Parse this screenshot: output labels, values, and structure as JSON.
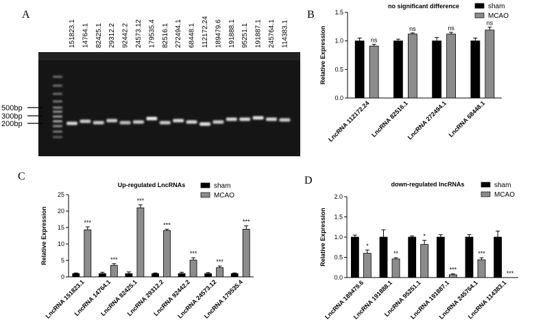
{
  "panels": {
    "a": "A",
    "b": "B",
    "c": "C",
    "d": "D"
  },
  "gel": {
    "lanes": [
      "151823.1",
      "14764.1",
      "82425.1",
      "29312.2",
      "92442.2",
      "24573.12",
      "179535.4",
      "82516.1",
      "272494.1",
      "68448.1",
      "112172.24",
      "189479.6",
      "191888.1",
      "95251.1",
      "191887.1",
      "245764.1",
      "114383.1"
    ],
    "markers": [
      "500bp",
      "300bp",
      "200bp"
    ]
  },
  "colors": {
    "sham": "#000000",
    "mcao": "#8c8c8c"
  },
  "chart_data": [
    {
      "panel": "B",
      "type": "bar",
      "title": "no significant difference",
      "ylabel": "Relative Expression",
      "ylim": [
        0,
        1.5
      ],
      "yticks": [
        "0.0",
        "0.5",
        "1.0",
        "1.5"
      ],
      "categories": [
        "LncRNA 112172.24",
        "LncRNA 82516.1",
        "LncRNA 272494.1",
        "LncRNA 68448.1"
      ],
      "series": [
        {
          "name": "sham",
          "values": [
            1.0,
            1.0,
            1.0,
            1.0
          ],
          "errors": [
            0.05,
            0.03,
            0.06,
            0.05
          ]
        },
        {
          "name": "MCAO",
          "values": [
            0.91,
            1.12,
            1.12,
            1.19
          ],
          "errors": [
            0.03,
            0.02,
            0.03,
            0.05
          ]
        }
      ],
      "significance": [
        "ns",
        "ns",
        "ns",
        "ns"
      ],
      "legend": "top-right"
    },
    {
      "panel": "C",
      "type": "bar",
      "title": "Up-regulated LncRNAs",
      "ylabel": "Relative Expression",
      "ylim": [
        0,
        25
      ],
      "yticks": [
        "0",
        "5",
        "10",
        "15",
        "20",
        "25"
      ],
      "categories": [
        "LncRNA 151823.1",
        "LncRNA 14764.1",
        "LncRNA 82425.1",
        "LncRNA 29312.2",
        "LncRNA 92442.2",
        "LncRNA 24573.12",
        "LncRNA 179535.4"
      ],
      "series": [
        {
          "name": "sham",
          "values": [
            1,
            1,
            1,
            1,
            1,
            1,
            1
          ],
          "errors": [
            0.2,
            0.4,
            0.5,
            0.2,
            0.4,
            0.3,
            0.2
          ]
        },
        {
          "name": "MCAO",
          "values": [
            14.3,
            3.5,
            21.0,
            14.1,
            5.1,
            2.8,
            14.5
          ],
          "errors": [
            0.9,
            0.5,
            0.9,
            0.4,
            0.7,
            0.5,
            1.0
          ]
        }
      ],
      "significance": [
        "***",
        "***",
        "***",
        "***",
        "***",
        "***",
        "***"
      ],
      "legend": "top-right"
    },
    {
      "panel": "D",
      "type": "bar",
      "title": "down-regulated lncRNAs",
      "ylabel": "Relative Expression",
      "ylim": [
        0,
        2.0
      ],
      "yticks": [
        "0.0",
        "0.5",
        "1.0",
        "1.5",
        "2.0"
      ],
      "categories": [
        "LncRNA 189479.6",
        "LncRNA 191888.1",
        "LncRNA 95251.1",
        "LncRNA 191887.1",
        "LncRNA 245764.1",
        "LncRNA 114383.1"
      ],
      "series": [
        {
          "name": "sham",
          "values": [
            1.0,
            1.0,
            1.0,
            1.0,
            1.0,
            1.0
          ],
          "errors": [
            0.05,
            0.18,
            0.03,
            0.06,
            0.06,
            0.15
          ]
        },
        {
          "name": "MCAO",
          "values": [
            0.6,
            0.46,
            0.82,
            0.07,
            0.44,
            0.0
          ],
          "errors": [
            0.08,
            0.03,
            0.1,
            0.02,
            0.05,
            0.0
          ]
        }
      ],
      "significance": [
        "*",
        "**",
        "*",
        "***",
        "***",
        "***"
      ],
      "legend": "top-right"
    }
  ]
}
